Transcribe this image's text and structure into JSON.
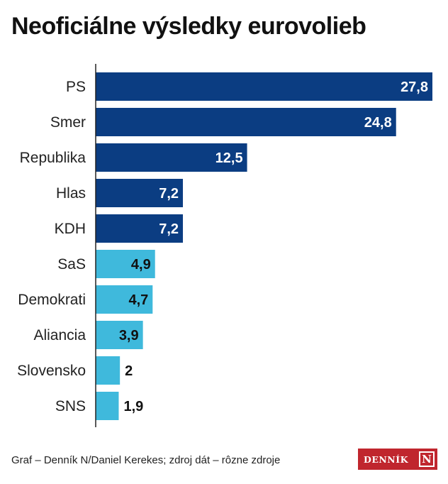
{
  "title": "Neoficiálne výsledky eurovolieb",
  "footer": {
    "credit": "Graf – Denník N/Daniel Kerekes; zdroj dát – rôzne zdroje",
    "logo_text": "DENNÍK",
    "logo_mark": "N"
  },
  "colors": {
    "dark_bar": "#0b3d82",
    "light_bar": "#3fb9dc",
    "axis": "#222222",
    "label": "#222222"
  },
  "chart_data": {
    "type": "bar",
    "orientation": "horizontal",
    "title": "Neoficiálne výsledky eurovolieb",
    "xlabel": "",
    "ylabel": "",
    "categories": [
      "PS",
      "Smer",
      "Republika",
      "Hlas",
      "KDH",
      "SaS",
      "Demokrati",
      "Aliancia",
      "Slovensko",
      "SNS"
    ],
    "values": [
      27.8,
      24.8,
      12.5,
      7.2,
      7.2,
      4.9,
      4.7,
      3.9,
      2,
      1.9
    ],
    "value_labels": [
      "27,8",
      "24,8",
      "12,5",
      "7,2",
      "7,2",
      "4,9",
      "4,7",
      "3,9",
      "2",
      "1,9"
    ],
    "xlim": [
      0,
      27.8
    ],
    "grid": false,
    "legend": "none"
  }
}
